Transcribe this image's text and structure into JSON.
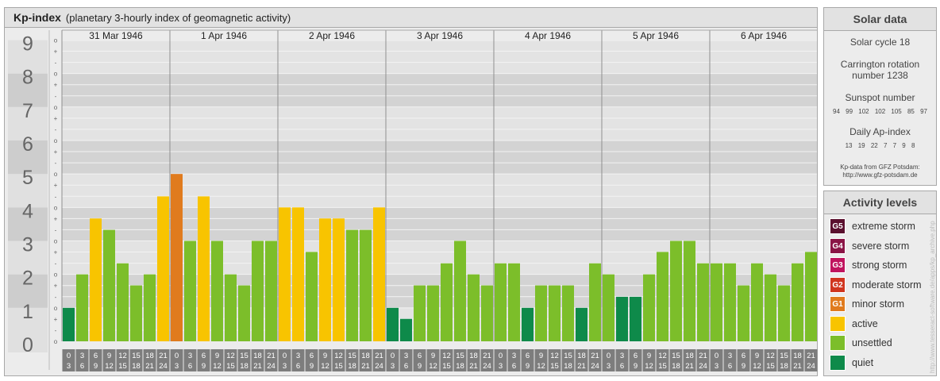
{
  "header": {
    "title": "Kp-index",
    "subtitle": "(planetary 3-hourly index of geomagnetic activity)"
  },
  "chart_data": {
    "type": "bar",
    "title": "Kp-index",
    "subtitle": "(planetary 3-hourly index of geomagnetic activity)",
    "days": [
      "31 Mar 1946",
      "1 Apr 1946",
      "2 Apr 1946",
      "3 Apr 1946",
      "4 Apr 1946",
      "5 Apr 1946",
      "6 Apr 1946"
    ],
    "interval_tops": [
      "0",
      "3",
      "6",
      "9",
      "12",
      "15",
      "18",
      "21"
    ],
    "interval_bottoms": [
      "3",
      "6",
      "9",
      "12",
      "15",
      "18",
      "21",
      "24"
    ],
    "y_ticks": [
      "0",
      "1",
      "2",
      "3",
      "4",
      "5",
      "6",
      "7",
      "8",
      "9"
    ],
    "minor_ticks": [
      "o",
      "-",
      "+"
    ],
    "ylim": [
      0,
      9.33
    ],
    "values": [
      1.0,
      2.0,
      3.67,
      3.33,
      2.33,
      1.67,
      2.0,
      4.33,
      5.0,
      3.0,
      4.33,
      3.0,
      2.0,
      1.67,
      3.0,
      3.0,
      4.0,
      4.0,
      2.67,
      3.67,
      3.67,
      3.33,
      3.33,
      4.0,
      1.0,
      0.67,
      1.67,
      1.67,
      2.33,
      3.0,
      2.0,
      1.67,
      2.33,
      2.33,
      1.0,
      1.67,
      1.67,
      1.67,
      1.0,
      2.33,
      2.0,
      1.33,
      1.33,
      2.0,
      2.67,
      3.0,
      3.0,
      2.33,
      2.33,
      2.33,
      1.67,
      2.33,
      2.0,
      1.67,
      2.33,
      2.67
    ],
    "colors": {
      "quiet": "#0e8a4a",
      "unsettled": "#7cbe2a",
      "active": "#f8c400",
      "minor_storm": "#e07b1e",
      "label_bg": "#7d7d7d",
      "band_dark": "#d3d3d3",
      "band_light": "#e3e3e3"
    }
  },
  "solar": {
    "title": "Solar data",
    "cycle": "Solar cycle 18",
    "carrington_line1": "Carrington rotation",
    "carrington_line2": "number 1238",
    "sunspot_title": "Sunspot number",
    "sunspot_values": "94 99 102 102 105 85 97",
    "ap_title": "Daily Ap-index",
    "ap_values": "13 19 22 7 7 9 8",
    "note_line1": "Kp-data from GFZ Potsdam:",
    "note_line2": "http://www.gfz-potsdam.de"
  },
  "activity": {
    "title": "Activity levels",
    "levels": [
      {
        "code": "G5",
        "label": "extreme storm",
        "color": "#5a0f2e"
      },
      {
        "code": "G4",
        "label": "severe storm",
        "color": "#8a1546"
      },
      {
        "code": "G3",
        "label": "strong storm",
        "color": "#c0145e"
      },
      {
        "code": "G2",
        "label": "moderate storm",
        "color": "#d0351f"
      },
      {
        "code": "G1",
        "label": "minor storm",
        "color": "#e07b1e"
      },
      {
        "code": "",
        "label": "active",
        "color": "#f8c400"
      },
      {
        "code": "",
        "label": "unsettled",
        "color": "#7cbe2a"
      },
      {
        "code": "",
        "label": "quiet",
        "color": "#0e8a4a"
      }
    ]
  },
  "watermark": "http://www.tesseract-software.de/apps/kp_archive.php"
}
